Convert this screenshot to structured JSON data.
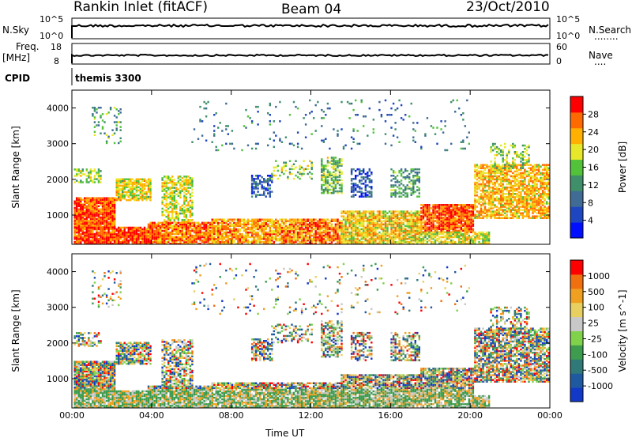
{
  "header": {
    "station": "Rankin Inlet (fitACF)",
    "beam": "Beam 04",
    "date": "23/Oct/2010"
  },
  "top_panels": {
    "nsky": {
      "label": "N.Sky",
      "ticks": [
        "10^5",
        "10^0"
      ],
      "right_label": "N.Search",
      "right_ticks": [
        "10^5",
        "10^0"
      ],
      "right_legend": "........"
    },
    "freq": {
      "label": "Freq.",
      "unit": "[MHz]",
      "ticks": [
        "18",
        "8"
      ],
      "right_label": "Nave",
      "right_ticks": [
        "60",
        "0"
      ],
      "right_legend": "...."
    },
    "cpid": {
      "label": "CPID",
      "value": "themis 3300"
    }
  },
  "chart_data": [
    {
      "type": "heatmap",
      "name": "power",
      "ylabel": "Slant Range [km]",
      "ylim": [
        180,
        4500
      ],
      "yticks": [
        1000,
        2000,
        3000,
        4000
      ],
      "xlim": [
        0,
        24
      ],
      "xticks": [
        "00:00",
        "04:00",
        "08:00",
        "12:00",
        "16:00",
        "20:00",
        "00:00"
      ],
      "colorbar": {
        "label": "Power [dB]",
        "range": [
          0,
          32
        ],
        "ticks": [
          "28",
          "24",
          "20",
          "16",
          "12",
          "8",
          "4"
        ],
        "colors": [
          "#0010ff",
          "#1e46c0",
          "#3f6b95",
          "#3f8f6a",
          "#52c23a",
          "#e8e82a",
          "#ffb000",
          "#ff6a00",
          "#ff0000"
        ]
      }
    },
    {
      "type": "heatmap",
      "name": "velocity",
      "ylabel": "Slant Range [km]",
      "ylim": [
        180,
        4500
      ],
      "yticks": [
        1000,
        2000,
        3000,
        4000
      ],
      "xlim": [
        0,
        24
      ],
      "xticks": [
        "00:00",
        "04:00",
        "08:00",
        "12:00",
        "16:00",
        "20:00",
        "00:00"
      ],
      "xlabel": "Time UT",
      "colorbar": {
        "label": "Velocity [m s^-1]",
        "ticks": [
          "1000",
          "500",
          "100",
          "25",
          "-25",
          "-100",
          "-500",
          "-1000"
        ],
        "colors": [
          "#1238c8",
          "#1f5aa0",
          "#2f7a78",
          "#3d9c4e",
          "#7fd24a",
          "#c8c8c8",
          "#e8d060",
          "#f0a020",
          "#f07010",
          "#ff0000"
        ]
      }
    }
  ]
}
